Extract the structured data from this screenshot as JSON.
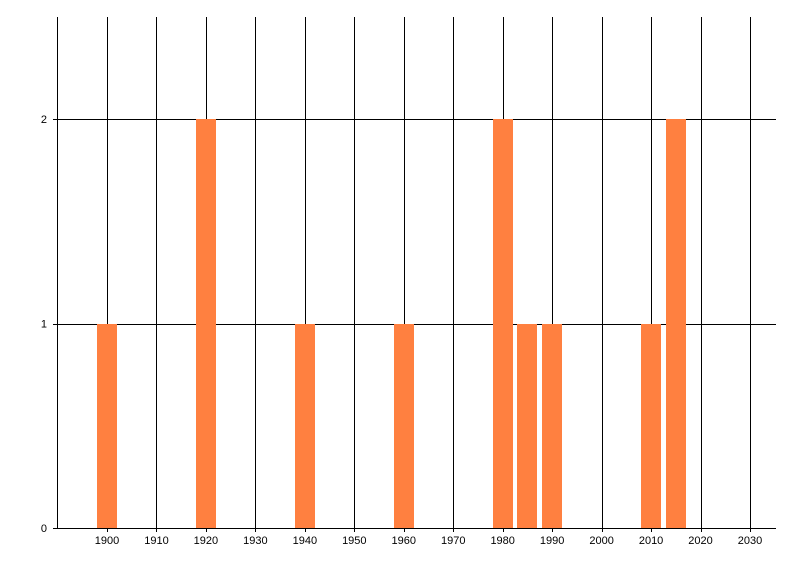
{
  "chart_data": {
    "type": "bar",
    "title": "",
    "xlabel": "",
    "ylabel": "",
    "x": [
      1900,
      1920,
      1940,
      1960,
      1980,
      1985,
      1990,
      2010,
      2015
    ],
    "values": [
      1,
      2,
      1,
      1,
      2,
      1,
      1,
      1,
      2
    ],
    "xlim": [
      1890,
      2035
    ],
    "ylim": [
      0,
      2.5
    ],
    "x_ticks": [
      "1900",
      "1910",
      "1920",
      "1930",
      "1940",
      "1950",
      "1960",
      "1970",
      "1980",
      "1990",
      "2000",
      "2010",
      "2020",
      "2030"
    ],
    "y_ticks": [
      "0",
      "1",
      "2"
    ],
    "grid": true,
    "legend": "none",
    "colors": {
      "bar": "#FF8040",
      "grid": "#000000",
      "axis": "#000000"
    }
  }
}
